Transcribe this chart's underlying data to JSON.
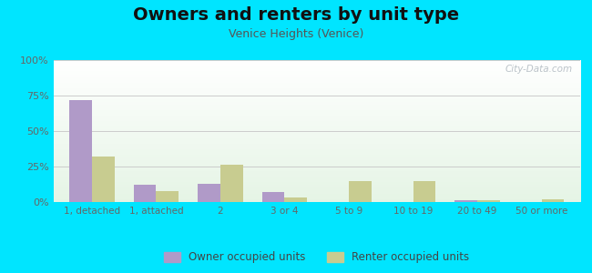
{
  "title": "Owners and renters by unit type",
  "subtitle": "Venice Heights (Venice)",
  "categories": [
    "1, detached",
    "1, attached",
    "2",
    "3 or 4",
    "5 to 9",
    "10 to 19",
    "20 to 49",
    "50 or more"
  ],
  "owner_values": [
    72,
    12,
    13,
    7,
    0,
    0,
    1,
    0
  ],
  "renter_values": [
    32,
    8,
    26,
    3,
    15,
    15,
    1,
    2
  ],
  "owner_color": "#b09ac8",
  "renter_color": "#c8cc90",
  "ylim": [
    0,
    100
  ],
  "yticks": [
    0,
    25,
    50,
    75,
    100
  ],
  "ytick_labels": [
    "0%",
    "25%",
    "50%",
    "75%",
    "100%"
  ],
  "outer_bg": "#00e5ff",
  "title_fontsize": 14,
  "subtitle_fontsize": 9,
  "legend_labels": [
    "Owner occupied units",
    "Renter occupied units"
  ],
  "watermark": "City-Data.com"
}
